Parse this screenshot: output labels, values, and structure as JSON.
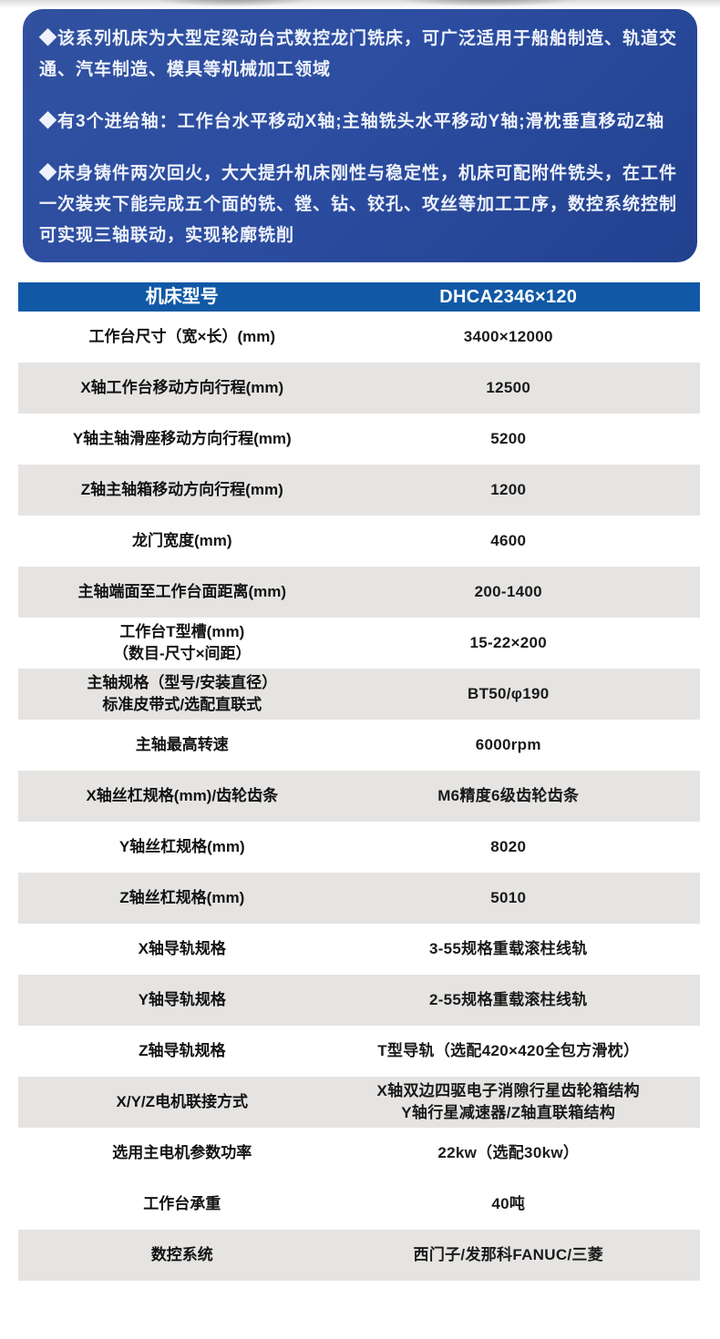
{
  "colors": {
    "intro_card_bg": "#2c4da1",
    "intro_text": "#eef2fb",
    "table_header_bg": "#1159a6",
    "table_header_text": "#ffffff",
    "row_alt_bg": "#e6e4e2",
    "row_text": "#1a1a1a"
  },
  "intro": {
    "bullets": [
      "◆该系列机床为大型定梁动台式数控龙门铣床，可广泛适用于船舶制造、轨道交\n通、汽车制造、模具等机械加工领域",
      "◆有3个进给轴：工作台水平移动X轴;主轴铣头水平移动Y轴;滑枕垂直移动Z轴",
      "◆床身铸件两次回火，大大提升机床刚性与稳定性，机床可配附件铣头，在工件\n一次装夹下能完成五个面的铣、镗、钻、铰孔、攻丝等加工工序，数控系统控制\n可实现三轴联动，实现轮廓铣削"
    ]
  },
  "table": {
    "header": {
      "label": "机床型号",
      "value": "DHCA2346×120"
    },
    "rows": [
      {
        "label": "工作台尺寸（宽×长）(mm)",
        "value": "3400×12000"
      },
      {
        "label": "X轴工作台移动方向行程(mm)",
        "value": "12500"
      },
      {
        "label": "Y轴主轴滑座移动方向行程(mm)",
        "value": "5200"
      },
      {
        "label": "Z轴主轴箱移动方向行程(mm)",
        "value": "1200"
      },
      {
        "label": "龙门宽度(mm)",
        "value": "4600"
      },
      {
        "label": "主轴端面至工作台面距离(mm)",
        "value": "200-1400"
      },
      {
        "label": "工作台T型槽(mm)",
        "label2": "（数目-尺寸×间距）",
        "value": "15-22×200"
      },
      {
        "label": "主轴规格（型号/安装直径）",
        "label2": "标准皮带式/选配直联式",
        "value": "BT50/φ190"
      },
      {
        "label": "主轴最高转速",
        "value": "6000rpm"
      },
      {
        "label": "X轴丝杠规格(mm)/齿轮齿条",
        "value": "M6精度6级齿轮齿条"
      },
      {
        "label": "Y轴丝杠规格(mm)",
        "value": "8020"
      },
      {
        "label": "Z轴丝杠规格(mm)",
        "value": "5010"
      },
      {
        "label": "X轴导轨规格",
        "value": "3-55规格重载滚柱线轨"
      },
      {
        "label": "Y轴导轨规格",
        "value": "2-55规格重载滚柱线轨"
      },
      {
        "label": "Z轴导轨规格",
        "value": "T型导轨（选配420×420全包方滑枕）"
      },
      {
        "label": "X/Y/Z电机联接方式",
        "value": "X轴双边四驱电子消隙行星齿轮箱结构",
        "value2": "Y轴行星减速器/Z轴直联箱结构"
      },
      {
        "label": "选用主电机参数功率",
        "value": "22kw（选配30kw）"
      },
      {
        "label": "工作台承重",
        "value": "40吨"
      },
      {
        "label": "数控系统",
        "value": "西门子/发那科FANUC/三菱"
      }
    ]
  }
}
